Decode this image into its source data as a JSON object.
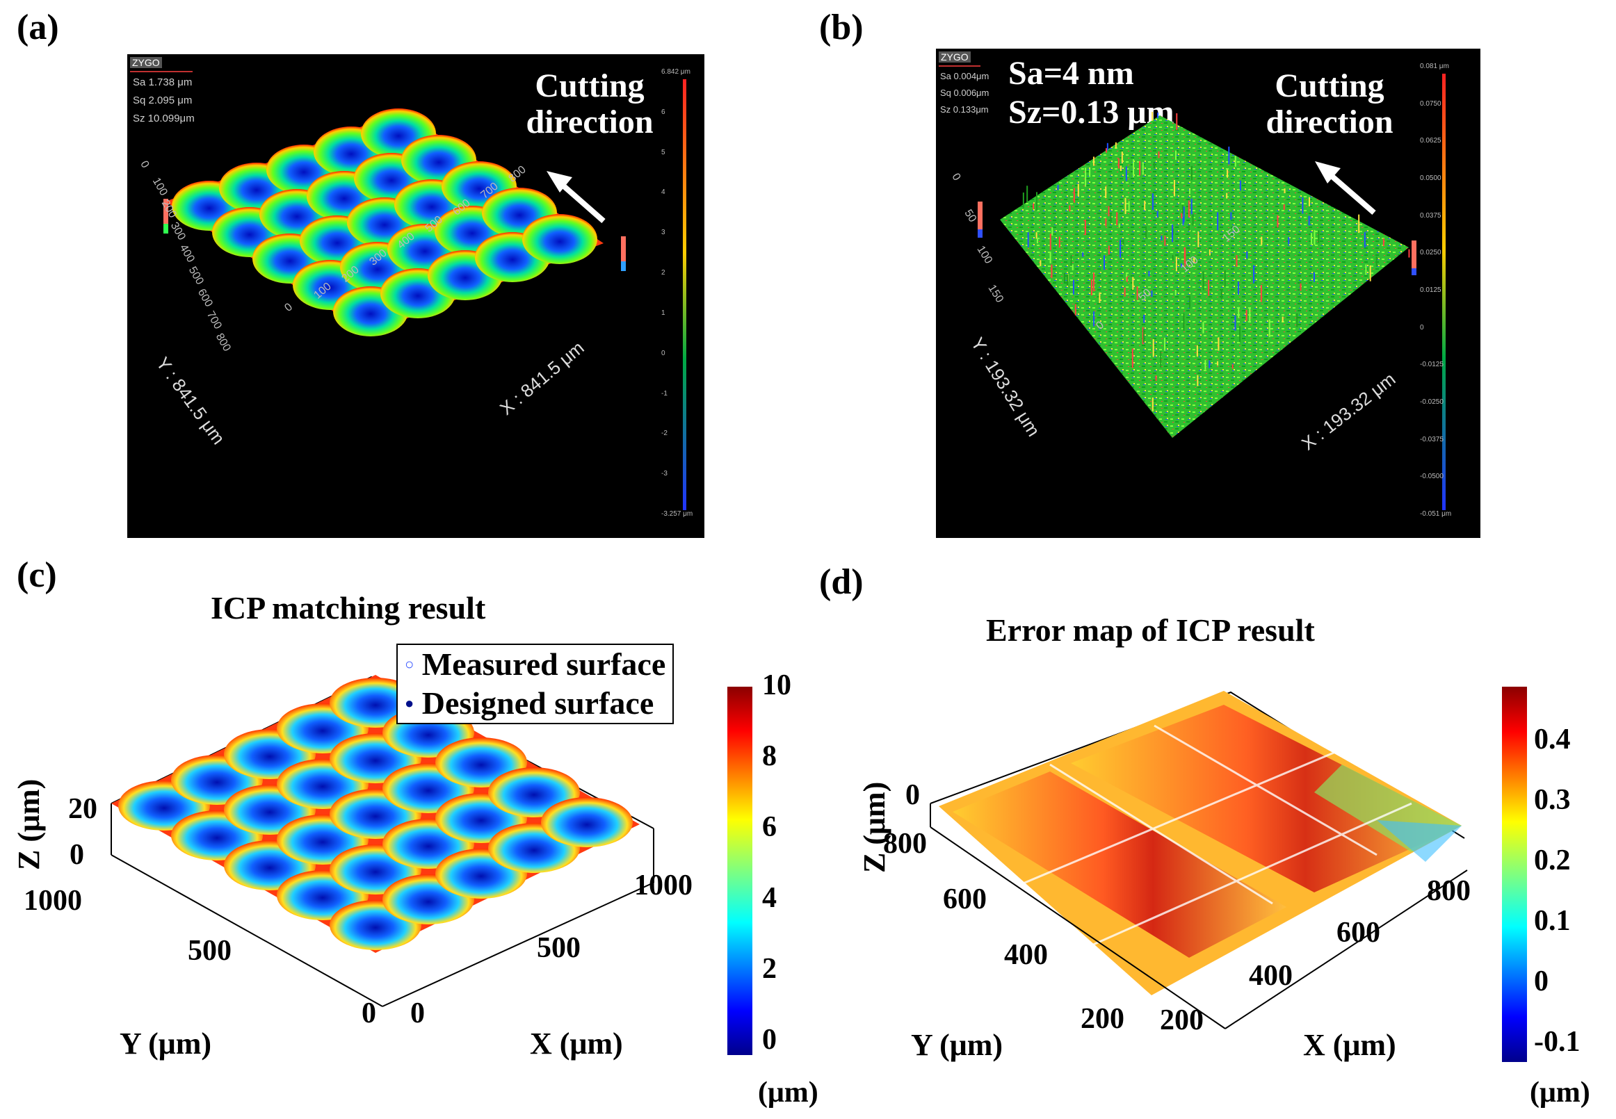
{
  "panel_a": {
    "label": "(a)",
    "logo": "ZYGO",
    "stats": [
      "Sa 1.738  μm",
      "Sq 2.095  μm",
      "Sz 10.099μm"
    ],
    "cutting": [
      "Cutting",
      "direction"
    ],
    "y_ticks": [
      "0",
      "100",
      "200",
      "300",
      "400",
      "500",
      "600",
      "700",
      "800"
    ],
    "x_ticks": [
      "0",
      "100",
      "200",
      "300",
      "400",
      "500",
      "600",
      "700",
      "800"
    ],
    "y_axis": "Y : 841.5 μm",
    "x_axis": "X : 841.5 μm",
    "colorbar_ticks": [
      "6.842 μm",
      "6",
      "5",
      "4",
      "3",
      "2",
      "1",
      "0",
      "-1",
      "-2",
      "-3",
      "-3.257 μm"
    ]
  },
  "panel_b": {
    "label": "(b)",
    "logo": "ZYGO",
    "stats": [
      "Sa 0.004μm",
      "Sq 0.006μm",
      "Sz 0.133μm"
    ],
    "big_stats": [
      "Sa=4 nm",
      "Sz=0.13 μm"
    ],
    "cutting": [
      "Cutting",
      "direction"
    ],
    "y_ticks": [
      "0",
      "50",
      "100",
      "150"
    ],
    "x_ticks": [
      "0",
      "50",
      "100",
      "150"
    ],
    "y_axis": "Y : 193.32 μm",
    "x_axis": "X : 193.32 μm",
    "colorbar_ticks": [
      "0.081 μm",
      "0.0750",
      "0.0625",
      "0.0500",
      "0.0375",
      "0.0250",
      "0.0125",
      "0",
      "-0.0125",
      "-0.0250",
      "-0.0375",
      "-0.0500",
      "-0.051 μm"
    ]
  },
  "panel_c": {
    "label": "(c)",
    "title": "ICP matching result",
    "legend": [
      "Measured surface",
      "Designed surface"
    ],
    "z_label": "Z (μm)",
    "z_ticks": [
      "20",
      "0"
    ],
    "y_label": "Y (μm)",
    "y_ticks": [
      "1000",
      "500",
      "0"
    ],
    "x_label": "X (μm)",
    "x_ticks": [
      "0",
      "500",
      "1000"
    ],
    "colorbar_ticks": [
      "10",
      "8",
      "6",
      "4",
      "2",
      "0"
    ],
    "colorbar_unit": "(μm)"
  },
  "panel_d": {
    "label": "(d)",
    "title": "Error map of ICP result",
    "z_label": "Z (μm)",
    "z_ticks": [
      "0"
    ],
    "y_label": "Y (μm)",
    "y_ticks": [
      "800",
      "600",
      "400",
      "200"
    ],
    "x_label": "X (μm)",
    "x_ticks": [
      "200",
      "400",
      "600",
      "800"
    ],
    "colorbar_ticks": [
      "0.4",
      "0.3",
      "0.2",
      "0.1",
      "0",
      "-0.1"
    ],
    "colorbar_unit": "(μm)"
  },
  "colors": {
    "jet_low": "#00008b",
    "jet_mid": "#00c000",
    "jet_high": "#8b0000",
    "panel_bg": "#000000"
  }
}
